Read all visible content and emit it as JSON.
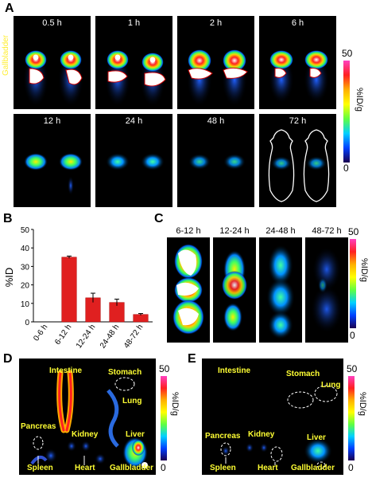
{
  "panel_a": {
    "label": "A",
    "annotation": "Gallbladder",
    "tiles": [
      {
        "time": "0.5 h"
      },
      {
        "time": "1 h"
      },
      {
        "time": "2 h"
      },
      {
        "time": "6 h"
      },
      {
        "time": "12 h"
      },
      {
        "time": "24 h"
      },
      {
        "time": "48 h"
      },
      {
        "time": "72 h"
      }
    ],
    "colorbar": {
      "max": "50",
      "min": "0",
      "unit": "%ID/g"
    }
  },
  "panel_b": {
    "label": "B",
    "chart_data": {
      "type": "bar",
      "categories": [
        "0-6 h",
        "6-12 h",
        "12-24 h",
        "24-48 h",
        "48-72 h"
      ],
      "values": [
        0,
        35,
        13,
        10.5,
        4
      ],
      "errors": [
        0,
        0.6,
        2.5,
        1.8,
        0.5
      ],
      "ylabel": "%ID",
      "ylim": [
        0,
        50
      ],
      "yticks": [
        "0",
        "10",
        "20",
        "30",
        "40",
        "50"
      ],
      "bar_color": "#e02020"
    }
  },
  "panel_c": {
    "label": "C",
    "tiles": [
      {
        "time": "6-12 h"
      },
      {
        "time": "12-24 h"
      },
      {
        "time": "24-48 h"
      },
      {
        "time": "48-72 h"
      }
    ],
    "colorbar": {
      "max": "50",
      "min": "0",
      "unit": "%ID/g"
    }
  },
  "panel_d": {
    "label": "D",
    "organs": {
      "intestine": "Intestine",
      "stomach": "Stomach",
      "lung": "Lung",
      "pancreas": "Pancreas",
      "kidney": "Kidney",
      "liver": "Liver",
      "spleen": "Spleen",
      "heart": "Heart",
      "gallbladder": "Gallbladder"
    },
    "colorbar": {
      "max": "50",
      "min": "0",
      "unit": "%ID/g"
    }
  },
  "panel_e": {
    "label": "E",
    "organs": {
      "intestine": "Intestine",
      "stomach": "Stomach",
      "lung": "Lung",
      "pancreas": "Pancreas",
      "kidney": "Kidney",
      "liver": "Liver",
      "spleen": "Spleen",
      "heart": "Heart",
      "gallbladder": "Gallbladder"
    },
    "colorbar": {
      "max": "50",
      "min": "0",
      "unit": "%ID/g"
    }
  }
}
